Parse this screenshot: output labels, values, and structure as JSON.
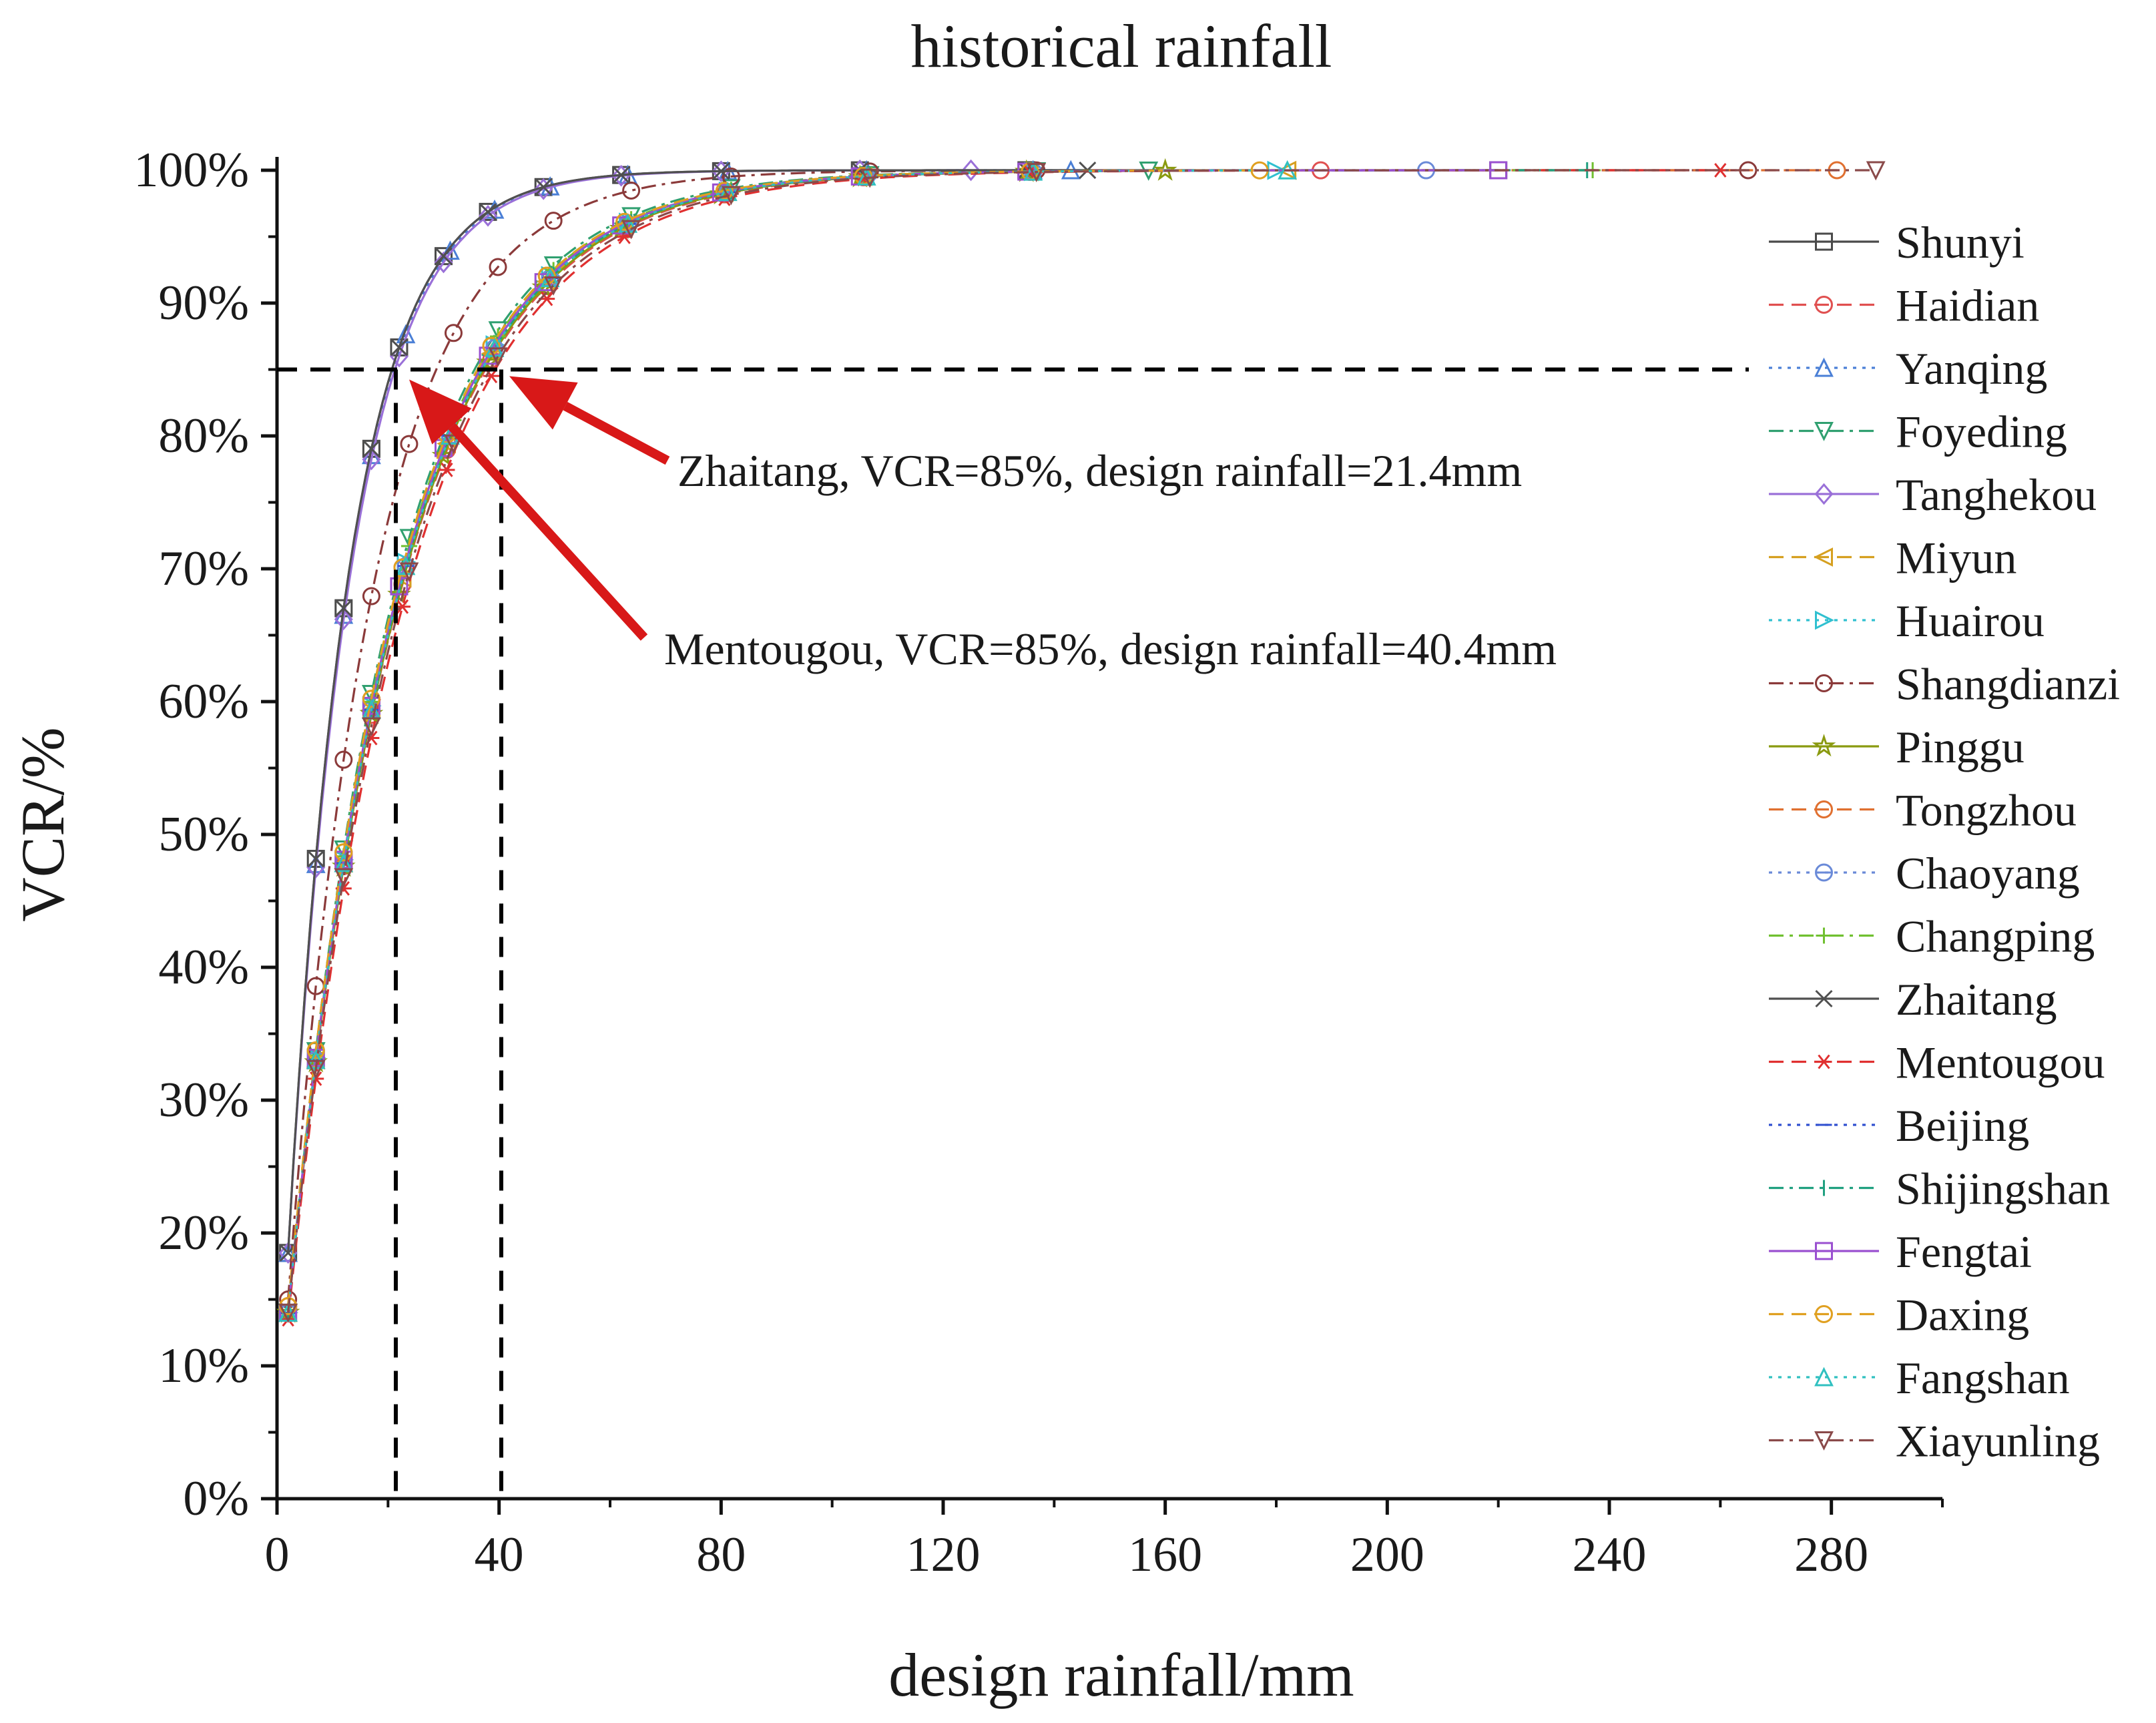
{
  "chart_data": {
    "type": "line",
    "title": "historical rainfall",
    "xlabel": "design rainfall/mm",
    "ylabel": "VCR/%",
    "xlim": [
      0,
      300
    ],
    "ylim": [
      0,
      100
    ],
    "xticks": [
      0,
      40,
      80,
      120,
      160,
      200,
      240,
      280
    ],
    "xtick_labels": [
      "0",
      "40",
      "80",
      "120",
      "160",
      "200",
      "240",
      "280"
    ],
    "yticks": [
      0,
      10,
      20,
      30,
      40,
      50,
      60,
      70,
      80,
      90,
      100
    ],
    "ytick_labels": [
      "0%",
      "10%",
      "20%",
      "30%",
      "40%",
      "50%",
      "60%",
      "70%",
      "80%",
      "90%",
      "100%"
    ],
    "reference_line_vcr": 85,
    "legend_position": "right",
    "series": [
      {
        "name": "Shunyi",
        "color": "#4a4a4a",
        "dash": "solid",
        "marker": "square",
        "start_vcr": 18.5,
        "k": 0.0905,
        "x_end": 220
      },
      {
        "name": "Haidian",
        "color": "#e05050",
        "dash": "dash",
        "marker": "circle",
        "start_vcr": 14.5,
        "k": 0.049,
        "x_end": 188
      },
      {
        "name": "Yanqing",
        "color": "#4a7fd6",
        "dash": "dot",
        "marker": "triangle-up",
        "start_vcr": 18.5,
        "k": 0.089,
        "x_end": 143
      },
      {
        "name": "Foyeding",
        "color": "#30a070",
        "dash": "dashdot",
        "marker": "triangle-down",
        "start_vcr": 14.0,
        "k": 0.052,
        "x_end": 157
      },
      {
        "name": "Tanghekou",
        "color": "#9a70d8",
        "dash": "solid",
        "marker": "diamond",
        "start_vcr": 18.5,
        "k": 0.088,
        "x_end": 125
      },
      {
        "name": "Miyun",
        "color": "#d6a020",
        "dash": "dash",
        "marker": "triangle-left",
        "start_vcr": 14.0,
        "k": 0.05,
        "x_end": 182
      },
      {
        "name": "Huairou",
        "color": "#30c0d0",
        "dash": "dot",
        "marker": "triangle-right",
        "start_vcr": 14.0,
        "k": 0.0505,
        "x_end": 180
      },
      {
        "name": "Shangdianzi",
        "color": "#8b3a3a",
        "dash": "dashdot",
        "marker": "circle",
        "start_vcr": 15.0,
        "k": 0.065,
        "x_end": 265
      },
      {
        "name": "Pinggu",
        "color": "#8a9a10",
        "dash": "solid",
        "marker": "star",
        "start_vcr": 14.0,
        "k": 0.0495,
        "x_end": 160
      },
      {
        "name": "Tongzhou",
        "color": "#e07030",
        "dash": "dash",
        "marker": "circle",
        "start_vcr": 14.5,
        "k": 0.051,
        "x_end": 281
      },
      {
        "name": "Chaoyang",
        "color": "#6a8ad8",
        "dash": "dot",
        "marker": "circle-dot",
        "start_vcr": 14.0,
        "k": 0.05,
        "x_end": 207
      },
      {
        "name": "Changping",
        "color": "#70c030",
        "dash": "dashdot",
        "marker": "plus",
        "start_vcr": 14.0,
        "k": 0.051,
        "x_end": 237
      },
      {
        "name": "Zhaitang",
        "color": "#505050",
        "dash": "solid",
        "marker": "x",
        "start_vcr": 18.5,
        "k": 0.0905,
        "x_end": 146
      },
      {
        "name": "Mentougou",
        "color": "#e03030",
        "dash": "dash",
        "marker": "asterisk",
        "start_vcr": 13.5,
        "k": 0.047,
        "x_end": 260
      },
      {
        "name": "Beijing",
        "color": "#3050d0",
        "dash": "dot",
        "marker": "dash",
        "start_vcr": 14.0,
        "k": 0.05,
        "x_end": 200
      },
      {
        "name": "Shijingshan",
        "color": "#20a080",
        "dash": "dashdot",
        "marker": "vbar",
        "start_vcr": 14.0,
        "k": 0.05,
        "x_end": 236
      },
      {
        "name": "Fengtai",
        "color": "#9a50d0",
        "dash": "solid",
        "marker": "square",
        "start_vcr": 14.0,
        "k": 0.0505,
        "x_end": 220
      },
      {
        "name": "Daxing",
        "color": "#e0a020",
        "dash": "dash",
        "marker": "circle",
        "start_vcr": 14.5,
        "k": 0.051,
        "x_end": 177
      },
      {
        "name": "Fangshan",
        "color": "#30c0c0",
        "dash": "dot",
        "marker": "triangle-up",
        "start_vcr": 14.0,
        "k": 0.05,
        "x_end": 182
      },
      {
        "name": "Xiayunling",
        "color": "#8a4a4a",
        "dash": "dashdot",
        "marker": "triangle-down",
        "start_vcr": 14.0,
        "k": 0.048,
        "x_end": 288
      }
    ],
    "annotations": [
      {
        "text": "Zhaitang, VCR=85%, design rainfall=21.4mm",
        "x": 21.4,
        "y": 85
      },
      {
        "text": "Mentougou, VCR=85%, design rainfall=40.4mm",
        "x": 40.4,
        "y": 85
      }
    ]
  }
}
